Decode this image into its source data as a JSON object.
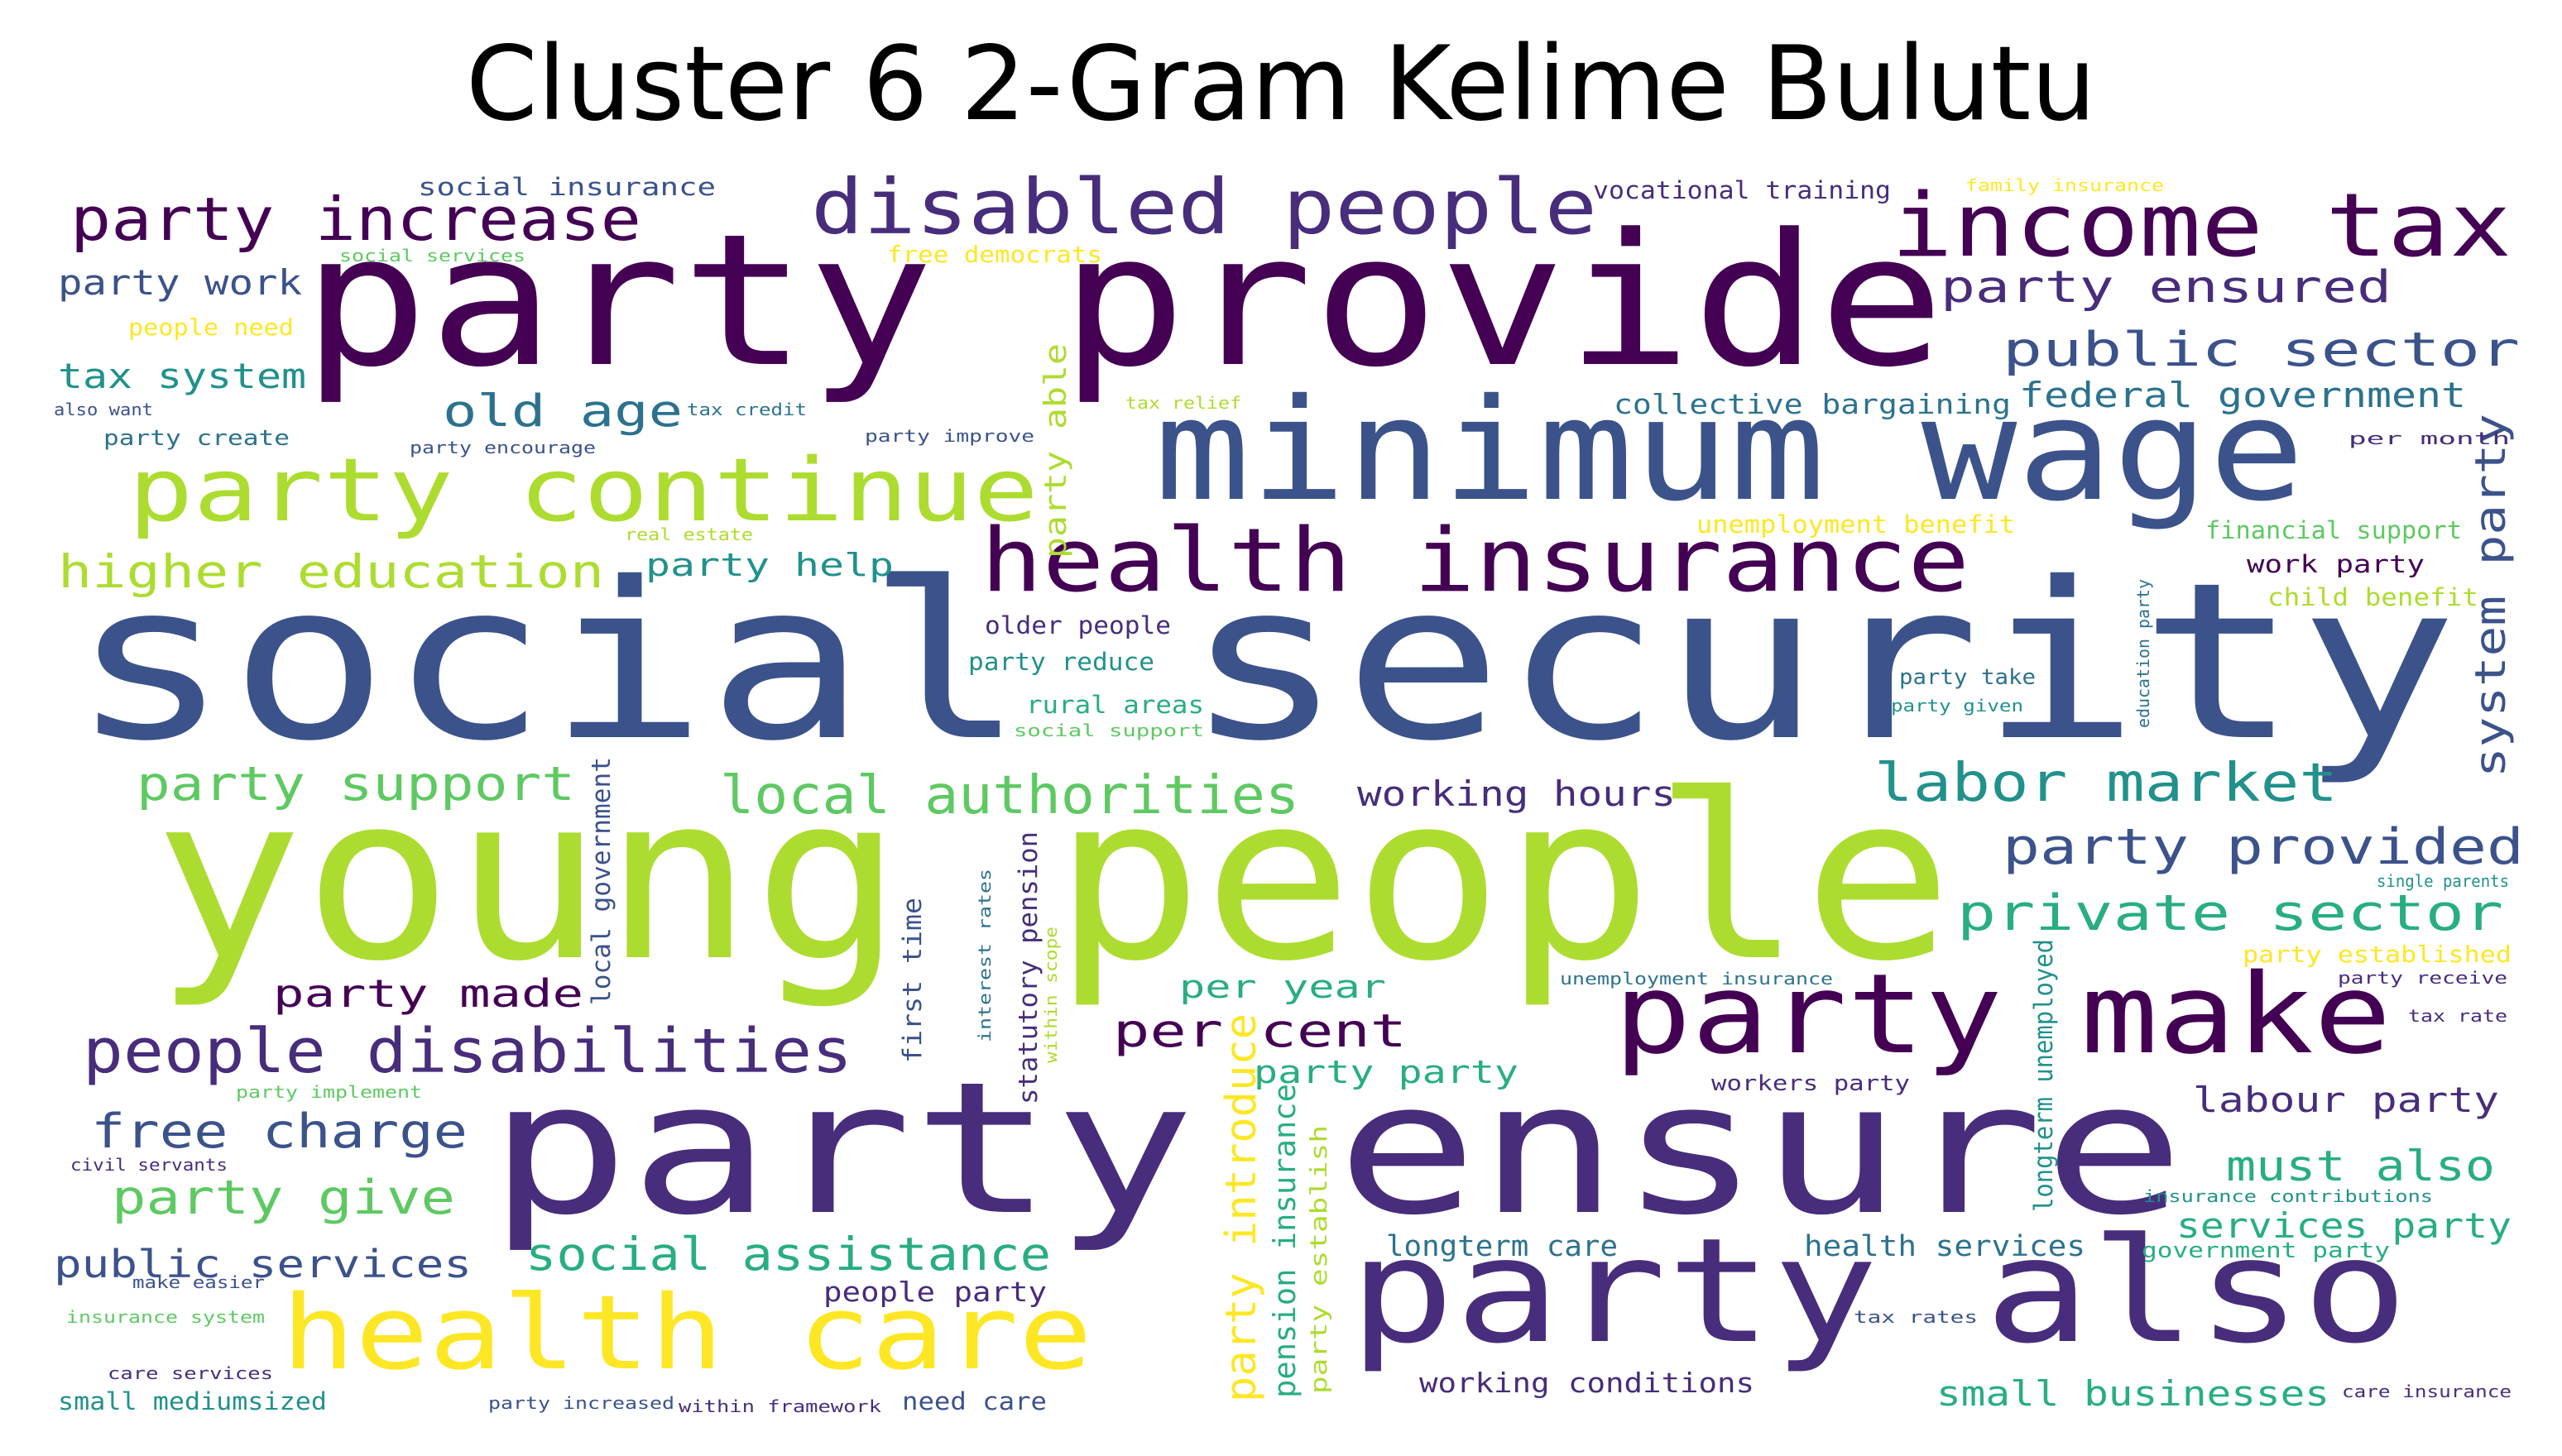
{
  "title": "Cluster 6 2-Gram Kelime Bulutu",
  "palette": {
    "c1": "#440154",
    "c2": "#472d7b",
    "c3": "#3b528b",
    "c4": "#2c728e",
    "c5": "#21918c",
    "c6": "#28ae80",
    "c7": "#5ec962",
    "c8": "#addc30",
    "c9": "#fde725"
  },
  "words": [
    {
      "text": "social security",
      "color": "c3"
    },
    {
      "text": "young people",
      "color": "c8"
    },
    {
      "text": "party ensure",
      "color": "c2"
    },
    {
      "text": "party provide",
      "color": "c1"
    },
    {
      "text": "minimum wage",
      "color": "c3"
    },
    {
      "text": "party also",
      "color": "c2"
    },
    {
      "text": "party make",
      "color": "c1"
    },
    {
      "text": "health care",
      "color": "c9"
    },
    {
      "text": "health insurance",
      "color": "c1"
    },
    {
      "text": "party continue",
      "color": "c8"
    },
    {
      "text": "income tax",
      "color": "c1"
    },
    {
      "text": "disabled people",
      "color": "c2"
    },
    {
      "text": "party increase",
      "color": "c1"
    },
    {
      "text": "people disabilities",
      "color": "c2"
    },
    {
      "text": "local authorities",
      "color": "c7"
    },
    {
      "text": "labor market",
      "color": "c5"
    },
    {
      "text": "party provided",
      "color": "c3"
    },
    {
      "text": "private sector",
      "color": "c6"
    },
    {
      "text": "public sector",
      "color": "c3"
    },
    {
      "text": "party support",
      "color": "c7"
    },
    {
      "text": "higher education",
      "color": "c8"
    },
    {
      "text": "free charge",
      "color": "c3"
    },
    {
      "text": "party give",
      "color": "c7"
    },
    {
      "text": "social assistance",
      "color": "c6"
    },
    {
      "text": "party ensured",
      "color": "c2"
    },
    {
      "text": "per cent",
      "color": "c1"
    },
    {
      "text": "old age",
      "color": "c4"
    },
    {
      "text": "public services",
      "color": "c3"
    },
    {
      "text": "party made",
      "color": "c1"
    },
    {
      "text": "must also",
      "color": "c6"
    },
    {
      "text": "federal government",
      "color": "c4"
    },
    {
      "text": "tax system",
      "color": "c5"
    },
    {
      "text": "party work",
      "color": "c3"
    },
    {
      "text": "working hours",
      "color": "c2"
    },
    {
      "text": "services party",
      "color": "c6"
    },
    {
      "text": "small businesses",
      "color": "c6"
    },
    {
      "text": "system party",
      "color": "c3"
    },
    {
      "text": "party introduce",
      "color": "c9"
    },
    {
      "text": "labour party",
      "color": "c2"
    },
    {
      "text": "party party",
      "color": "c6"
    },
    {
      "text": "per year",
      "color": "c6"
    },
    {
      "text": "party help",
      "color": "c5"
    },
    {
      "text": "longterm care",
      "color": "c4"
    },
    {
      "text": "health services",
      "color": "c4"
    },
    {
      "text": "working conditions",
      "color": "c2"
    },
    {
      "text": "collective bargaining",
      "color": "c4"
    },
    {
      "text": "pension insurance",
      "color": "c6"
    },
    {
      "text": "people party",
      "color": "c2"
    },
    {
      "text": "party able",
      "color": "c8"
    },
    {
      "text": "social insurance",
      "color": "c3"
    },
    {
      "text": "vocational training",
      "color": "c2"
    },
    {
      "text": "older people",
      "color": "c2"
    },
    {
      "text": "party reduce",
      "color": "c5"
    },
    {
      "text": "rural areas",
      "color": "c6"
    },
    {
      "text": "financial support",
      "color": "c7"
    },
    {
      "text": "work party",
      "color": "c1"
    },
    {
      "text": "child benefit",
      "color": "c8"
    },
    {
      "text": "unemployment benefit",
      "color": "c9"
    },
    {
      "text": "small mediumsized",
      "color": "c5"
    },
    {
      "text": "need care",
      "color": "c3"
    },
    {
      "text": "local government",
      "color": "c3"
    },
    {
      "text": "statutory pension",
      "color": "c2"
    },
    {
      "text": "first time",
      "color": "c3"
    },
    {
      "text": "longterm unemployed",
      "color": "c5"
    },
    {
      "text": "free democrats",
      "color": "c9"
    },
    {
      "text": "people need",
      "color": "c9"
    },
    {
      "text": "party create",
      "color": "c4"
    },
    {
      "text": "party take",
      "color": "c4"
    },
    {
      "text": "workers party",
      "color": "c2"
    },
    {
      "text": "government party",
      "color": "c6"
    },
    {
      "text": "party establish",
      "color": "c8"
    },
    {
      "text": "party established",
      "color": "c9"
    },
    {
      "text": "social services",
      "color": "c7"
    },
    {
      "text": "family insurance",
      "color": "c9"
    },
    {
      "text": "also want",
      "color": "c3"
    },
    {
      "text": "party encourage",
      "color": "c3"
    },
    {
      "text": "tax credit",
      "color": "c4"
    },
    {
      "text": "tax relief",
      "color": "c8"
    },
    {
      "text": "party improve",
      "color": "c3"
    },
    {
      "text": "per month",
      "color": "c2"
    },
    {
      "text": "real estate",
      "color": "c8"
    },
    {
      "text": "social support",
      "color": "c7"
    },
    {
      "text": "party given",
      "color": "c5"
    },
    {
      "text": "education party",
      "color": "c4"
    },
    {
      "text": "single parents",
      "color": "c5"
    },
    {
      "text": "party receive",
      "color": "c2"
    },
    {
      "text": "tax rate",
      "color": "c2"
    },
    {
      "text": "unemployment insurance",
      "color": "c4"
    },
    {
      "text": "interest rates",
      "color": "c4"
    },
    {
      "text": "within scope",
      "color": "c8"
    },
    {
      "text": "party implement",
      "color": "c7"
    },
    {
      "text": "civil servants",
      "color": "c2"
    },
    {
      "text": "insurance contributions",
      "color": "c5"
    },
    {
      "text": "make easier",
      "color": "c3"
    },
    {
      "text": "insurance system",
      "color": "c7"
    },
    {
      "text": "care services",
      "color": "c2"
    },
    {
      "text": "party increased",
      "color": "c3"
    },
    {
      "text": "within framework",
      "color": "c2"
    },
    {
      "text": "tax rates",
      "color": "c3"
    },
    {
      "text": "care insurance",
      "color": "c2"
    }
  ]
}
